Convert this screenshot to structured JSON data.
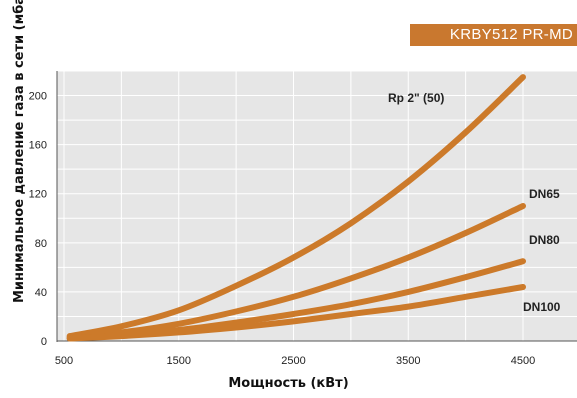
{
  "badge": "KRBY512 PR-MD",
  "chart_data": {
    "type": "line",
    "title": "",
    "xlabel": "Мощность (кВт)",
    "ylabel": "Минимальное давление газа в сети (мбар)",
    "xlim": [
      500,
      4500
    ],
    "ylim": [
      0,
      220
    ],
    "x_ticks": [
      500,
      1500,
      2500,
      3500,
      4500
    ],
    "y_ticks": [
      0,
      40,
      80,
      120,
      160,
      200
    ],
    "grid": true,
    "line_color": "#cc7a2a",
    "series": [
      {
        "name": "Rp 2\" (50)",
        "x": [
          550,
          1000,
          1500,
          2000,
          2500,
          3000,
          3500,
          4000,
          4500
        ],
        "values": [
          4,
          12,
          25,
          45,
          68,
          96,
          130,
          170,
          215
        ]
      },
      {
        "name": "DN65",
        "x": [
          550,
          1000,
          1500,
          2000,
          2500,
          3000,
          3500,
          4000,
          4500
        ],
        "values": [
          3,
          7,
          14,
          24,
          36,
          51,
          68,
          88,
          110
        ]
      },
      {
        "name": "DN80",
        "x": [
          550,
          1000,
          1500,
          2000,
          2500,
          3000,
          3500,
          4000,
          4500
        ],
        "values": [
          2,
          5,
          9,
          15,
          22,
          30,
          40,
          52,
          65
        ]
      },
      {
        "name": "DN100",
        "x": [
          550,
          1000,
          1500,
          2000,
          2500,
          3000,
          3500,
          4000,
          4500
        ],
        "values": [
          2,
          4,
          7,
          11,
          16,
          22,
          28,
          36,
          44
        ]
      }
    ]
  }
}
